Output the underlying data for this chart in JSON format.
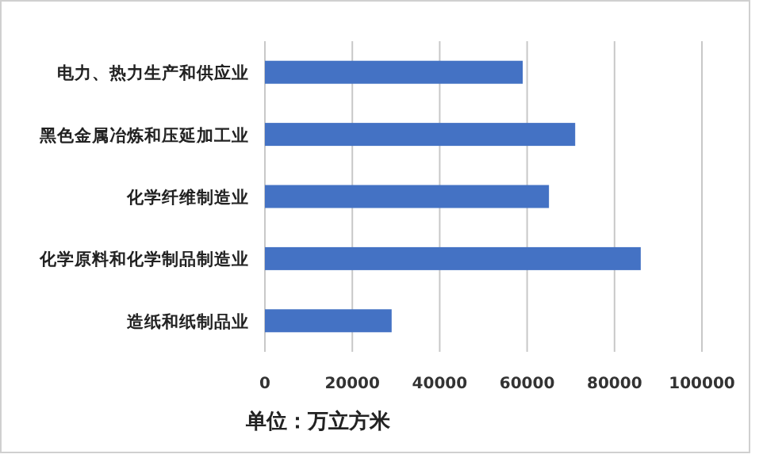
{
  "chart_data": {
    "type": "bar",
    "orientation": "horizontal",
    "categories": [
      "电力、热力生产和供应业",
      "黑色金属冶炼和压延加工业",
      "化学纤维制造业",
      "化学原料和化学制品制造业",
      "造纸和纸制品业"
    ],
    "values": [
      59000,
      71000,
      65000,
      86000,
      29000
    ],
    "color": "#4472c4",
    "xlim": [
      0,
      100000
    ],
    "xticks": [
      0,
      20000,
      40000,
      60000,
      80000,
      100000
    ],
    "grid": "x",
    "annotations": [
      "单位：万立方米"
    ]
  }
}
